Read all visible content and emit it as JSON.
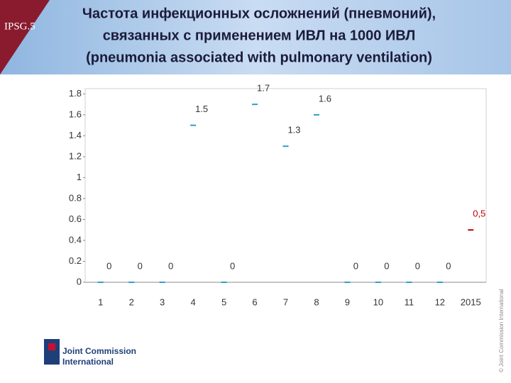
{
  "badge": "IPSG.5",
  "logo": {
    "line1": "Joint Commission",
    "line2": "International"
  },
  "copyright": "© Joint Commission International",
  "chart_data": {
    "type": "line-markers",
    "title": [
      "Частота инфекционных осложнений (пневмоний),",
      "связанных с применением ИВЛ  на 1000 ИВЛ",
      "(pneumonia associated with pulmonary ventilation)"
    ],
    "categories": [
      "1",
      "2",
      "3",
      "4",
      "5",
      "6",
      "7",
      "8",
      "9",
      "10",
      "11",
      "12",
      "2015"
    ],
    "values": [
      0,
      0,
      0,
      1.5,
      0,
      1.7,
      1.3,
      1.6,
      0,
      0,
      0,
      0,
      0.5
    ],
    "value_labels": [
      "0",
      "0",
      "0",
      "1.5",
      "0",
      "1.7",
      "1.3",
      "1.6",
      "0",
      "0",
      "0",
      "0",
      "0,5"
    ],
    "colors": [
      "#2f9fc6",
      "#2f9fc6",
      "#2f9fc6",
      "#2f9fc6",
      "#2f9fc6",
      "#2f9fc6",
      "#2f9fc6",
      "#2f9fc6",
      "#2f9fc6",
      "#2f9fc6",
      "#2f9fc6",
      "#2f9fc6",
      "#c00000"
    ],
    "ylim": [
      0,
      1.85
    ],
    "yticks": [
      0,
      0.2,
      0.4,
      0.6,
      0.8,
      1,
      1.2,
      1.4,
      1.6,
      1.8
    ]
  }
}
